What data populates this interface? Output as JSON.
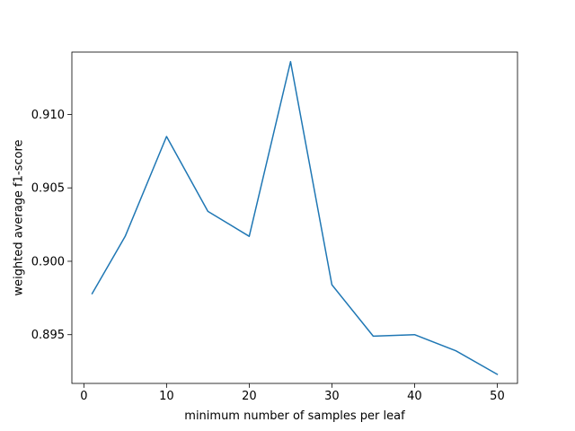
{
  "chart_data": {
    "type": "line",
    "title": "",
    "xlabel": "minimum number of samples per leaf",
    "ylabel": "weighted average f1-score",
    "x": [
      1,
      5,
      10,
      15,
      20,
      25,
      30,
      35,
      40,
      45,
      50
    ],
    "series": [
      {
        "values": [
          0.8978,
          0.9017,
          0.9085,
          0.9034,
          0.9017,
          0.9136,
          0.8984,
          0.8949,
          0.895,
          0.8939,
          0.8923
        ],
        "color": "#1f77b4"
      }
    ],
    "xlim": [
      -1.45,
      52.45
    ],
    "ylim": [
      0.89168,
      0.91425
    ],
    "xticks": [
      0,
      10,
      20,
      30,
      40,
      50
    ],
    "xtick_labels": [
      "0",
      "10",
      "20",
      "30",
      "40",
      "50"
    ],
    "yticks": [
      0.895,
      0.9,
      0.905,
      0.91
    ],
    "ytick_labels": [
      "0.895",
      "0.900",
      "0.905",
      "0.910"
    ],
    "grid": false,
    "legend": "none"
  }
}
